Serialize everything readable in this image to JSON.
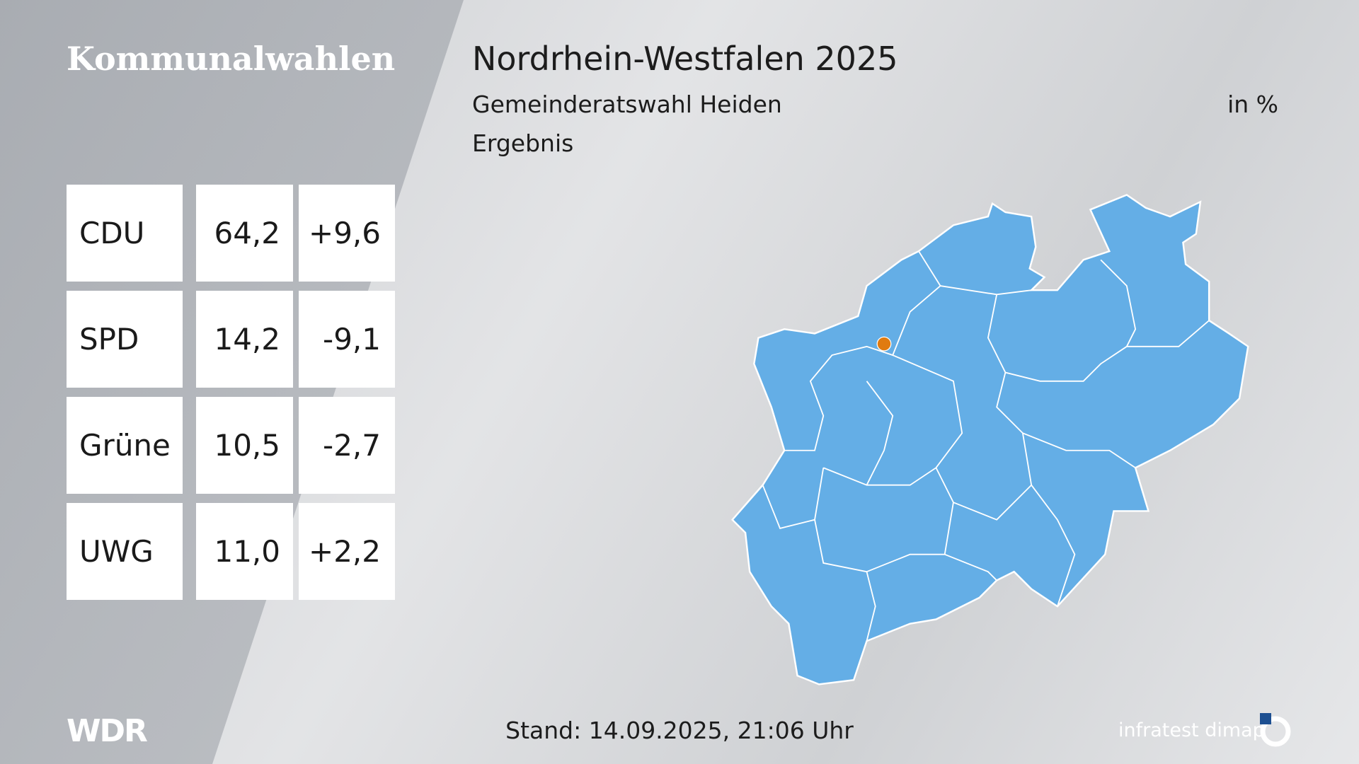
{
  "sidebar": {
    "title": "Kommunalwahlen"
  },
  "header": {
    "title": "Nordrhein-Westfalen 2025",
    "subtitle": "Gemeinderatswahl Heiden",
    "unit": "in %",
    "caption": "Ergebnis"
  },
  "table": {
    "rows": [
      [
        "CDU",
        "64,2",
        "+9,6"
      ],
      [
        "SPD",
        "14,2",
        "-9,1"
      ],
      [
        "Grüne",
        "10,5",
        "-2,7"
      ],
      [
        "UWG",
        "11,0",
        "+2,2"
      ]
    ]
  },
  "footer": {
    "broadcaster": "WDR",
    "timestamp": "Stand: 14.09.2025, 21:06 Uhr",
    "source": "infratest dimap"
  }
}
